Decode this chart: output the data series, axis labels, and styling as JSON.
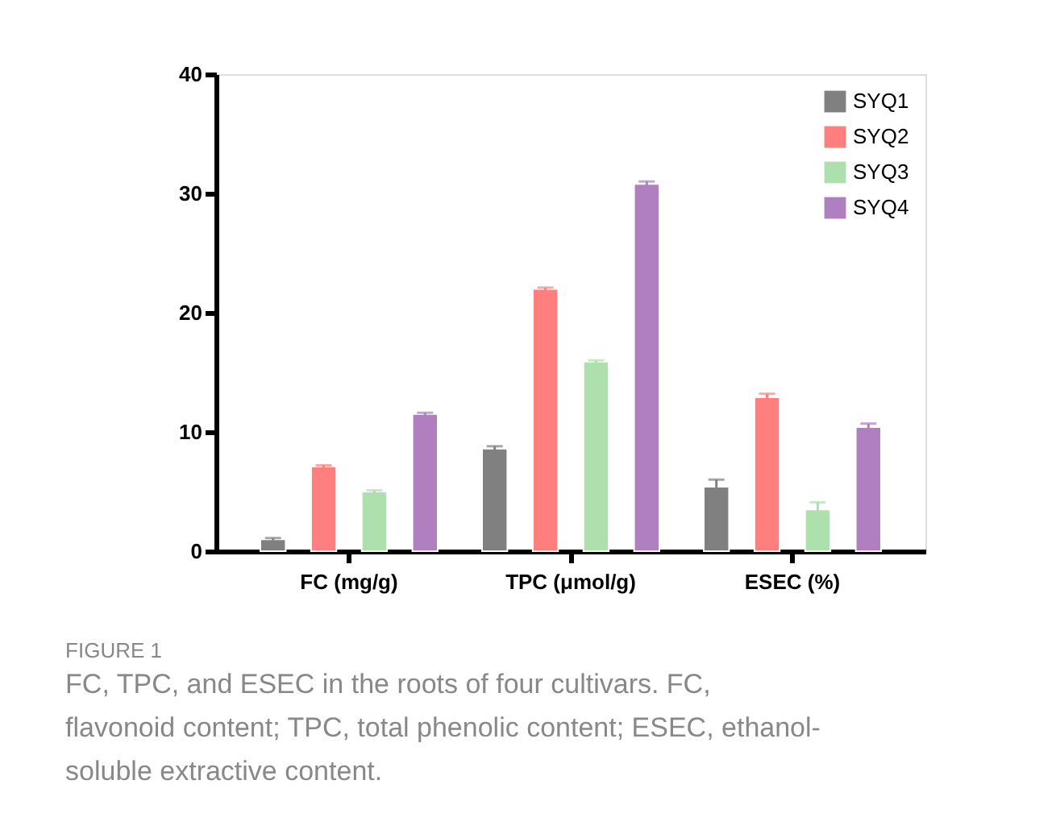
{
  "chart_data": {
    "type": "bar",
    "categories": [
      "FC (mg/g)",
      "TPC (μmol/g)",
      "ESEC (%)"
    ],
    "series": [
      {
        "name": "SYQ1",
        "color": "#808080",
        "values": [
          1.0,
          8.6,
          5.4
        ],
        "errors": [
          0.1,
          0.2,
          0.6
        ]
      },
      {
        "name": "SYQ2",
        "color": "#ff7f7f",
        "values": [
          7.1,
          22.0,
          12.9
        ],
        "errors": [
          0.1,
          0.1,
          0.3
        ]
      },
      {
        "name": "SYQ3",
        "color": "#aee0ae",
        "values": [
          5.0,
          15.9,
          3.5
        ],
        "errors": [
          0.1,
          0.1,
          0.6
        ]
      },
      {
        "name": "SYQ4",
        "color": "#b07fc0",
        "values": [
          11.5,
          30.8,
          10.4
        ],
        "errors": [
          0.1,
          0.2,
          0.3
        ]
      }
    ],
    "ylim": [
      0,
      40
    ],
    "yticks": [
      0,
      10,
      20,
      30,
      40
    ],
    "grid": false,
    "legend": "top right",
    "annotations": [
      "FIGURE 1",
      "FC, TPC, and ESEC in the roots of four cultivars. FC, flavonoid content; TPC, total phenolic content; ESEC, ethanol-soluble extractive content."
    ]
  }
}
